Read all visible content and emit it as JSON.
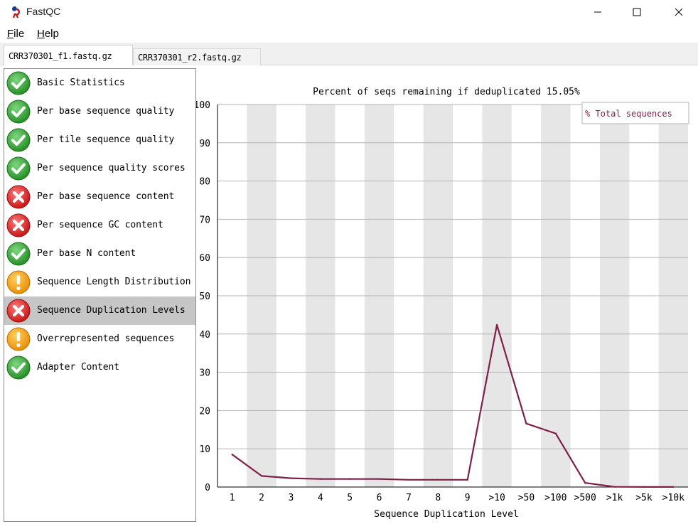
{
  "window": {
    "title": "FastQC"
  },
  "menu": {
    "file": {
      "accel": "F",
      "rest": "ile"
    },
    "help": {
      "accel": "H",
      "rest": "elp"
    }
  },
  "tabs": [
    {
      "label": "CRR370301_f1.fastq.gz",
      "active": true
    },
    {
      "label": "CRR370301_r2.fastq.gz",
      "active": false
    }
  ],
  "modules": [
    {
      "label": "Basic Statistics",
      "status": "pass",
      "icon": "pass-check-icon"
    },
    {
      "label": "Per base sequence quality",
      "status": "pass",
      "icon": "pass-check-icon"
    },
    {
      "label": "Per tile sequence quality",
      "status": "pass",
      "icon": "pass-check-icon"
    },
    {
      "label": "Per sequence quality scores",
      "status": "pass",
      "icon": "pass-check-icon"
    },
    {
      "label": "Per base sequence content",
      "status": "fail",
      "icon": "fail-cross-icon"
    },
    {
      "label": "Per sequence GC content",
      "status": "fail",
      "icon": "fail-cross-icon"
    },
    {
      "label": "Per base N content",
      "status": "pass",
      "icon": "pass-check-icon"
    },
    {
      "label": "Sequence Length Distribution",
      "status": "warn",
      "icon": "warn-exclamation-icon"
    },
    {
      "label": "Sequence Duplication Levels",
      "status": "fail",
      "icon": "fail-cross-icon",
      "selected": true
    },
    {
      "label": "Overrepresented sequences",
      "status": "warn",
      "icon": "warn-exclamation-icon"
    },
    {
      "label": "Adapter Content",
      "status": "pass",
      "icon": "pass-check-icon"
    }
  ],
  "colors": {
    "pass": "#2fa52f",
    "fail": "#e01b1b",
    "warn": "#f5a000",
    "series": "#80204a",
    "stripe": "#e6e6e6",
    "selected_row": "#c6c6c6"
  },
  "chart_data": {
    "type": "line",
    "title": "Percent of seqs remaining if deduplicated 15.05%",
    "xlabel": "Sequence Duplication Level",
    "ylabel": "",
    "categories": [
      "1",
      "2",
      "3",
      "4",
      "5",
      "6",
      "7",
      "8",
      "9",
      ">10",
      ">50",
      ">100",
      ">500",
      ">1k",
      ">5k",
      ">10k"
    ],
    "series": [
      {
        "name": "% Total sequences",
        "values": [
          8.5,
          2.9,
          2.3,
          2.1,
          2.1,
          2.1,
          1.9,
          1.9,
          1.9,
          42.4,
          16.6,
          14.0,
          1.1,
          0.05,
          0.02,
          0.02
        ]
      }
    ],
    "yticks": [
      "0",
      "10",
      "20",
      "30",
      "40",
      "50",
      "60",
      "70",
      "80",
      "90",
      "100"
    ],
    "ylim": [
      0,
      100
    ],
    "grid": true,
    "alternating_column_shading": true,
    "legend_position": "top-right"
  }
}
